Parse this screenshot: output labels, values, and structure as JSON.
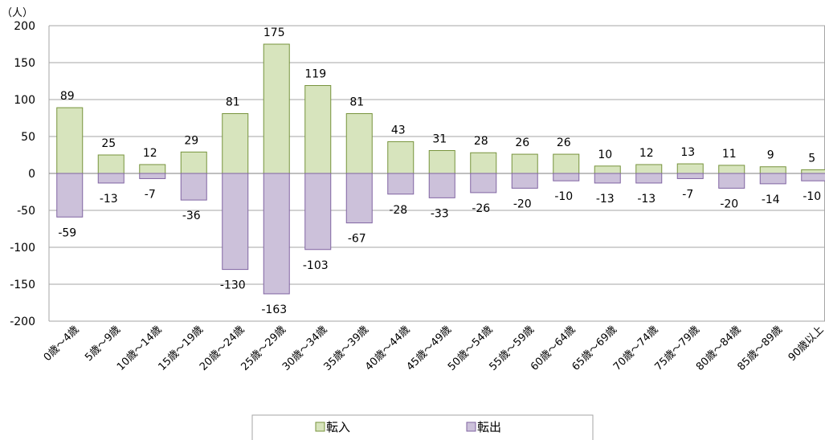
{
  "chart_data": {
    "type": "bar",
    "unit_label": "（人）",
    "categories": [
      "0歳～4歳",
      "5歳～9歳",
      "10歳～14歳",
      "15歳～19歳",
      "20歳～24歳",
      "25歳～29歳",
      "30歳～34歳",
      "35歳～39歳",
      "40歳～44歳",
      "45歳～49歳",
      "50歳～54歳",
      "55歳～59歳",
      "60歳～64歳",
      "65歳～69歳",
      "70歳～74歳",
      "75歳～79歳",
      "80歳～84歳",
      "85歳～89歳",
      "90歳以上"
    ],
    "series": [
      {
        "name": "転入",
        "color": "#d7e4bd",
        "stroke": "#77933c",
        "values": [
          89,
          25,
          12,
          29,
          81,
          175,
          119,
          81,
          43,
          31,
          28,
          26,
          26,
          10,
          12,
          13,
          11,
          9,
          5
        ]
      },
      {
        "name": "転出",
        "color": "#ccc1da",
        "stroke": "#8064a2",
        "values": [
          -59,
          -13,
          -7,
          -36,
          -130,
          -163,
          -103,
          -67,
          -28,
          -33,
          -26,
          -20,
          -10,
          -13,
          -13,
          -7,
          -20,
          -14,
          -10
        ]
      }
    ],
    "ylim": [
      -200,
      200
    ],
    "yticks": [
      200,
      150,
      100,
      50,
      0,
      -50,
      -100,
      -150,
      -200
    ],
    "grid": true,
    "legend_position": "bottom"
  }
}
